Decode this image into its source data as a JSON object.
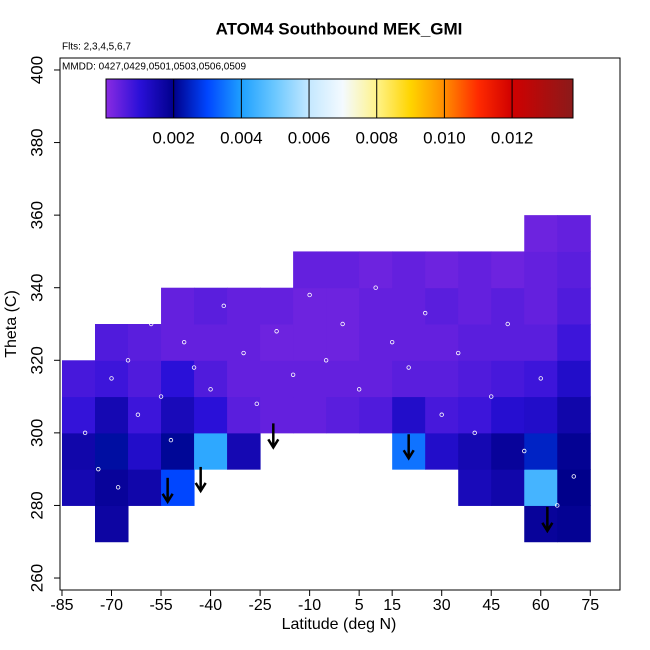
{
  "chart_data": {
    "type": "heatmap",
    "title": "ATOM4 Southbound MEK_GMI",
    "subtitle": "Flts: 2,3,4,5,6,7",
    "annotation": "MMDD: 0427,0429,0501,0503,0506,0509",
    "x_label": "Latitude (deg N)",
    "y_label": "Theta (C)",
    "xlim": [
      -85.6,
      84
    ],
    "ylim": [
      256.7,
      403.3
    ],
    "xticks": [
      -85,
      -70,
      -55,
      -40,
      -25,
      -10,
      5,
      15,
      30,
      45,
      60,
      75
    ],
    "yticks": [
      260,
      280,
      300,
      320,
      340,
      360,
      380,
      400
    ],
    "x": [
      -80,
      -70,
      -60,
      -50,
      -40,
      -30,
      -20,
      -10,
      0,
      10,
      20,
      30,
      40,
      50,
      60,
      70
    ],
    "y": [
      275,
      285,
      295,
      305,
      315,
      325,
      335,
      345,
      355
    ],
    "z": [
      [
        null,
        0.0017,
        null,
        null,
        null,
        null,
        null,
        null,
        null,
        null,
        null,
        null,
        null,
        null,
        0.0018,
        0.0019
      ],
      [
        0.0015,
        0.0018,
        0.0016,
        0.003,
        null,
        null,
        null,
        null,
        null,
        null,
        null,
        null,
        0.0014,
        0.0016,
        0.0045,
        0.002
      ],
      [
        0.0016,
        0.0022,
        0.0012,
        0.0021,
        0.0042,
        0.0015,
        null,
        null,
        null,
        null,
        0.0035,
        0.0012,
        0.0015,
        0.0018,
        0.0025,
        0.0019
      ],
      [
        0.0009,
        0.0015,
        0.0008,
        0.0014,
        0.001,
        0.0005,
        0.0004,
        0.0004,
        0.0005,
        0.0006,
        0.0012,
        0.0007,
        0.0008,
        0.0011,
        0.0012,
        0.0016
      ],
      [
        0.0007,
        0.0008,
        0.0006,
        0.001,
        0.0006,
        0.0004,
        0.0004,
        0.0004,
        0.0004,
        0.0004,
        0.0005,
        0.0005,
        0.0006,
        0.0007,
        0.0008,
        0.0012
      ],
      [
        null,
        0.0006,
        0.0005,
        0.0004,
        0.0004,
        0.0004,
        0.0003,
        0.0003,
        0.0003,
        0.0004,
        0.0004,
        0.0004,
        0.0005,
        0.0005,
        0.0005,
        0.0008
      ],
      [
        null,
        null,
        null,
        0.0004,
        0.0005,
        0.0004,
        0.0004,
        0.0003,
        0.0003,
        0.0004,
        0.0004,
        0.0005,
        0.0004,
        0.0005,
        0.0004,
        0.0006
      ],
      [
        null,
        null,
        null,
        null,
        null,
        null,
        null,
        0.0004,
        0.0004,
        0.0003,
        0.0004,
        0.0003,
        0.0004,
        0.0003,
        0.0004,
        0.0005
      ],
      [
        null,
        null,
        null,
        null,
        null,
        null,
        null,
        null,
        null,
        null,
        null,
        null,
        null,
        null,
        0.0003,
        0.0004
      ]
    ],
    "colorbar": {
      "lim": [
        0,
        0.0138
      ],
      "ticks": [
        0.002,
        0.004,
        0.006,
        0.008,
        {
          "value": 0.01,
          "label": "0.010"
        },
        0.012
      ],
      "colorscale": [
        [
          0,
          "#8a2be2"
        ],
        [
          0.001,
          "#2a10d8"
        ],
        [
          0.002,
          "#00008b"
        ],
        [
          0.003,
          "#0046ff"
        ],
        [
          0.004,
          "#1ea0ff"
        ],
        [
          0.005,
          "#6cc8ff"
        ],
        [
          0.006,
          "#c4e8ff"
        ],
        [
          0.007,
          "#f4faff"
        ],
        [
          0.008,
          "#fff38a"
        ],
        [
          0.009,
          "#ffd400"
        ],
        [
          0.01,
          "#ff8c00"
        ],
        [
          0.011,
          "#ff2a00"
        ],
        [
          0.012,
          "#d00000"
        ],
        [
          0.0138,
          "#8b1a1a"
        ]
      ]
    },
    "samples": {
      "x": [
        -78,
        -74,
        -70,
        -68,
        -65,
        -62,
        -58,
        -55,
        -52,
        -48,
        -45,
        -40,
        -36,
        -30,
        -26,
        -20,
        -15,
        -10,
        -5,
        0,
        5,
        10,
        15,
        20,
        25,
        30,
        35,
        40,
        45,
        50,
        55,
        60,
        65,
        70
      ],
      "y": [
        300,
        290,
        315,
        285,
        320,
        305,
        330,
        310,
        298,
        325,
        318,
        312,
        335,
        322,
        308,
        328,
        316,
        338,
        320,
        330,
        312,
        340,
        325,
        318,
        333,
        305,
        322,
        300,
        310,
        330,
        295,
        315,
        280,
        288
      ]
    },
    "arrows": {
      "x": [
        -53,
        -43,
        -21,
        20,
        62
      ],
      "y": [
        281,
        284,
        296,
        293,
        273
      ]
    }
  }
}
